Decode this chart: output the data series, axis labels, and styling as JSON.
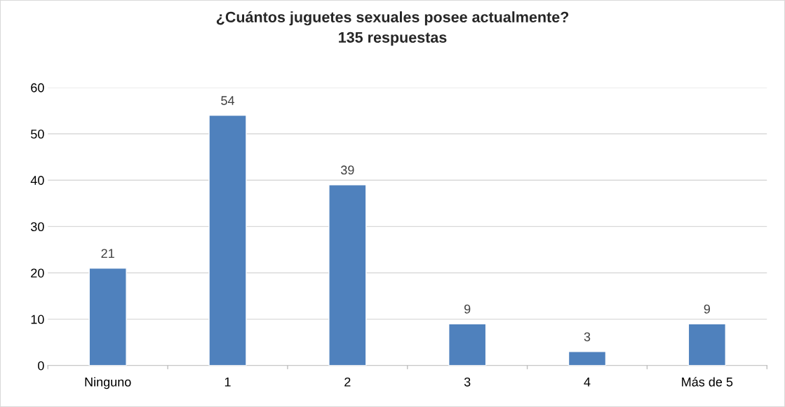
{
  "chart_data": {
    "type": "bar",
    "title": "¿Cuántos juguetes sexuales posee actualmente?",
    "subtitle": "135 respuestas",
    "categories": [
      "Ninguno",
      "1",
      "2",
      "3",
      "4",
      "Más de 5"
    ],
    "values": [
      21,
      54,
      39,
      9,
      3,
      9
    ],
    "color": "#4f81bd",
    "ylim": [
      0,
      60
    ],
    "yticks": [
      0,
      10,
      20,
      30,
      40,
      50,
      60
    ],
    "grid": "y",
    "data_labels": true
  }
}
